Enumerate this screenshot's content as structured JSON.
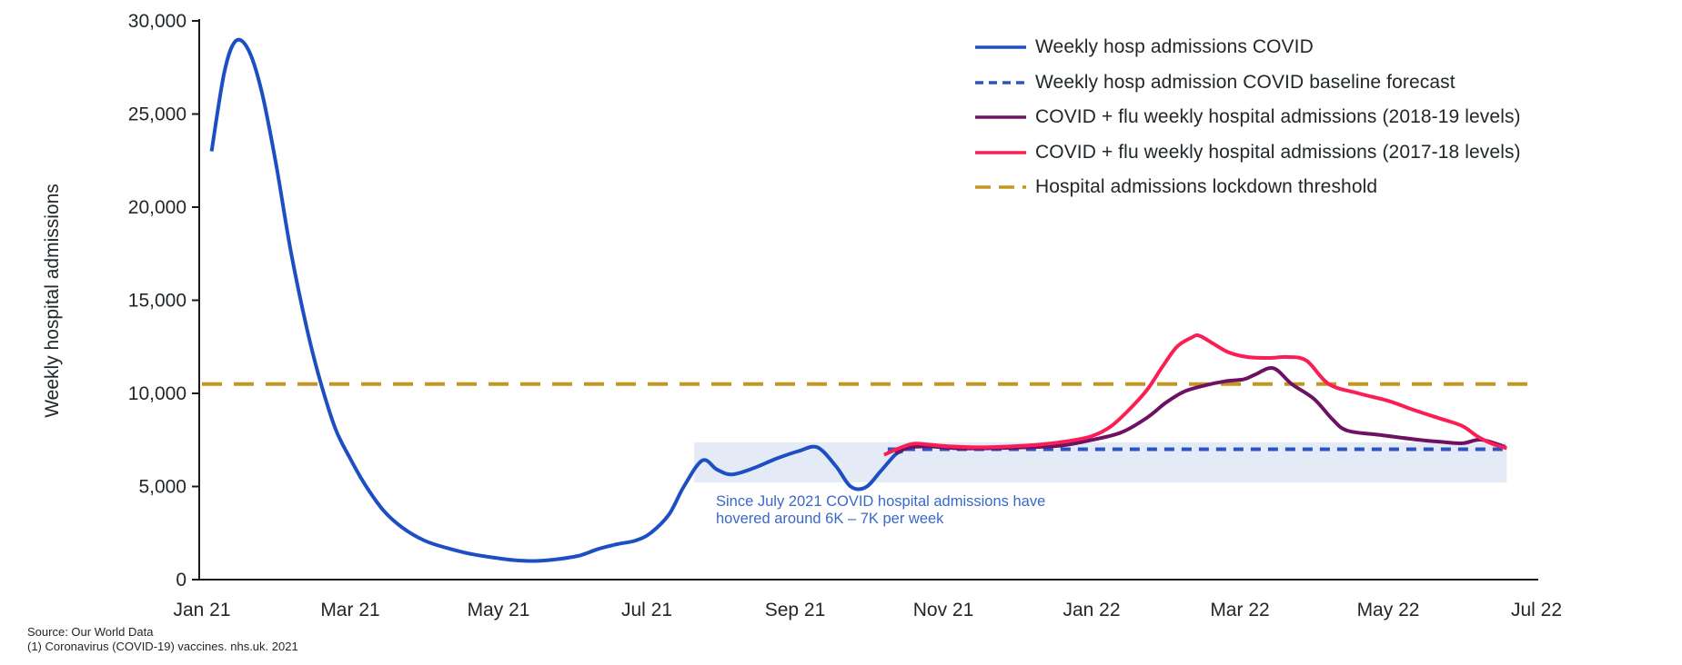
{
  "page": {
    "ylabel": "Weekly hospital admissions",
    "annotation_line1": "Since July 2021 COVID hospital admissions have",
    "annotation_line2": "hovered around 6K – 7K per week",
    "source_line1": "Source: Our World Data",
    "source_line2": "(1) Coronavirus (COVID-19) vaccines. nhs.uk. 2021"
  },
  "colors": {
    "covid_blue": "#1e4fc2",
    "baseline_blue": "#2a55c0",
    "flu_purple": "#6e1163",
    "flu_red": "#fb1e55",
    "threshold_gold": "#c3971f",
    "annotation_text": "#3a68c8",
    "annotation_box": "#e4eaf6",
    "axis": "#1a1a1a"
  },
  "chart_data": {
    "type": "line",
    "title": "",
    "xlabel": "",
    "ylabel": "Weekly hospital admissions",
    "ylim": [
      0,
      30000
    ],
    "y_ticks": [
      0,
      5000,
      10000,
      15000,
      20000,
      25000,
      30000
    ],
    "x_tick_months": [
      0,
      2,
      4,
      6,
      8,
      10,
      12,
      14,
      16,
      18
    ],
    "x_tick_labels": [
      "Jan 21",
      "Mar 21",
      "May 21",
      "Jul 21",
      "Sep 21",
      "Nov 21",
      "Jan 22",
      "Mar 22",
      "May 22",
      "Jul 22"
    ],
    "grid": false,
    "legend_position": "top-right",
    "annotation": {
      "text": "Since July 2021 COVID hospital admissions have hovered around 6K – 7K per week",
      "box_x_months": [
        6.64,
        17.6
      ],
      "box_y_values": [
        5220,
        7370
      ]
    },
    "series": [
      {
        "name": "Weekly hosp admissions COVID",
        "style": "solid",
        "color": "#1e4fc2",
        "points": [
          [
            0.13,
            23000
          ],
          [
            0.3,
            27200
          ],
          [
            0.45,
            28900
          ],
          [
            0.62,
            28500
          ],
          [
            0.8,
            26300
          ],
          [
            1.0,
            22300
          ],
          [
            1.2,
            17600
          ],
          [
            1.42,
            13400
          ],
          [
            1.6,
            10600
          ],
          [
            1.8,
            8100
          ],
          [
            2.0,
            6500
          ],
          [
            2.2,
            5100
          ],
          [
            2.45,
            3700
          ],
          [
            2.7,
            2800
          ],
          [
            3.0,
            2100
          ],
          [
            3.3,
            1700
          ],
          [
            3.6,
            1400
          ],
          [
            3.9,
            1200
          ],
          [
            4.2,
            1050
          ],
          [
            4.5,
            1000
          ],
          [
            4.8,
            1100
          ],
          [
            5.1,
            1300
          ],
          [
            5.35,
            1650
          ],
          [
            5.6,
            1900
          ],
          [
            5.85,
            2100
          ],
          [
            6.05,
            2500
          ],
          [
            6.3,
            3500
          ],
          [
            6.5,
            5000
          ],
          [
            6.75,
            6400
          ],
          [
            6.95,
            5900
          ],
          [
            7.15,
            5650
          ],
          [
            7.45,
            6000
          ],
          [
            7.75,
            6500
          ],
          [
            8.05,
            6900
          ],
          [
            8.3,
            7100
          ],
          [
            8.55,
            6100
          ],
          [
            8.75,
            5000
          ],
          [
            8.95,
            4950
          ],
          [
            9.15,
            5800
          ],
          [
            9.35,
            6700
          ],
          [
            9.45,
            6900
          ]
        ]
      },
      {
        "name": "Weekly hosp admission COVID baseline forecast",
        "style": "dashed",
        "color": "#2a55c0",
        "points": [
          [
            9.25,
            7000
          ],
          [
            17.6,
            7000
          ]
        ]
      },
      {
        "name": "COVID + flu weekly hospital admissions (2018-19 levels)",
        "style": "solid",
        "color": "#6e1163",
        "points": [
          [
            9.35,
            6800
          ],
          [
            9.55,
            7100
          ],
          [
            9.8,
            7150
          ],
          [
            10.2,
            7050
          ],
          [
            10.6,
            7050
          ],
          [
            11.1,
            7100
          ],
          [
            11.6,
            7200
          ],
          [
            12.0,
            7500
          ],
          [
            12.4,
            7900
          ],
          [
            12.75,
            8700
          ],
          [
            13.0,
            9500
          ],
          [
            13.25,
            10100
          ],
          [
            13.5,
            10400
          ],
          [
            13.8,
            10650
          ],
          [
            14.05,
            10750
          ],
          [
            14.2,
            11000
          ],
          [
            14.45,
            11350
          ],
          [
            14.7,
            10500
          ],
          [
            15.0,
            9700
          ],
          [
            15.25,
            8600
          ],
          [
            15.45,
            8000
          ],
          [
            15.9,
            7760
          ],
          [
            16.4,
            7510
          ],
          [
            16.7,
            7400
          ],
          [
            17.0,
            7320
          ],
          [
            17.25,
            7510
          ],
          [
            17.58,
            7120
          ]
        ]
      },
      {
        "name": "COVID + flu weekly hospital admissions (2017-18 levels)",
        "style": "solid",
        "color": "#fb1e55",
        "points": [
          [
            9.2,
            6700
          ],
          [
            9.4,
            7050
          ],
          [
            9.6,
            7300
          ],
          [
            9.8,
            7250
          ],
          [
            10.1,
            7150
          ],
          [
            10.5,
            7100
          ],
          [
            10.9,
            7150
          ],
          [
            11.3,
            7250
          ],
          [
            11.7,
            7450
          ],
          [
            12.0,
            7700
          ],
          [
            12.25,
            8200
          ],
          [
            12.5,
            9100
          ],
          [
            12.75,
            10200
          ],
          [
            12.95,
            11400
          ],
          [
            13.15,
            12500
          ],
          [
            13.35,
            13000
          ],
          [
            13.45,
            13100
          ],
          [
            13.65,
            12650
          ],
          [
            13.85,
            12200
          ],
          [
            14.1,
            11950
          ],
          [
            14.4,
            11900
          ],
          [
            14.65,
            11950
          ],
          [
            14.9,
            11750
          ],
          [
            15.2,
            10500
          ],
          [
            15.6,
            10000
          ],
          [
            16.0,
            9600
          ],
          [
            16.35,
            9100
          ],
          [
            16.7,
            8650
          ],
          [
            17.0,
            8250
          ],
          [
            17.2,
            7700
          ],
          [
            17.4,
            7300
          ],
          [
            17.6,
            7050
          ]
        ]
      },
      {
        "name": "Hospital admissions lockdown threshold",
        "style": "long-dash",
        "color": "#c3971f",
        "points": [
          [
            0,
            10500
          ],
          [
            17.95,
            10500
          ]
        ]
      }
    ]
  }
}
